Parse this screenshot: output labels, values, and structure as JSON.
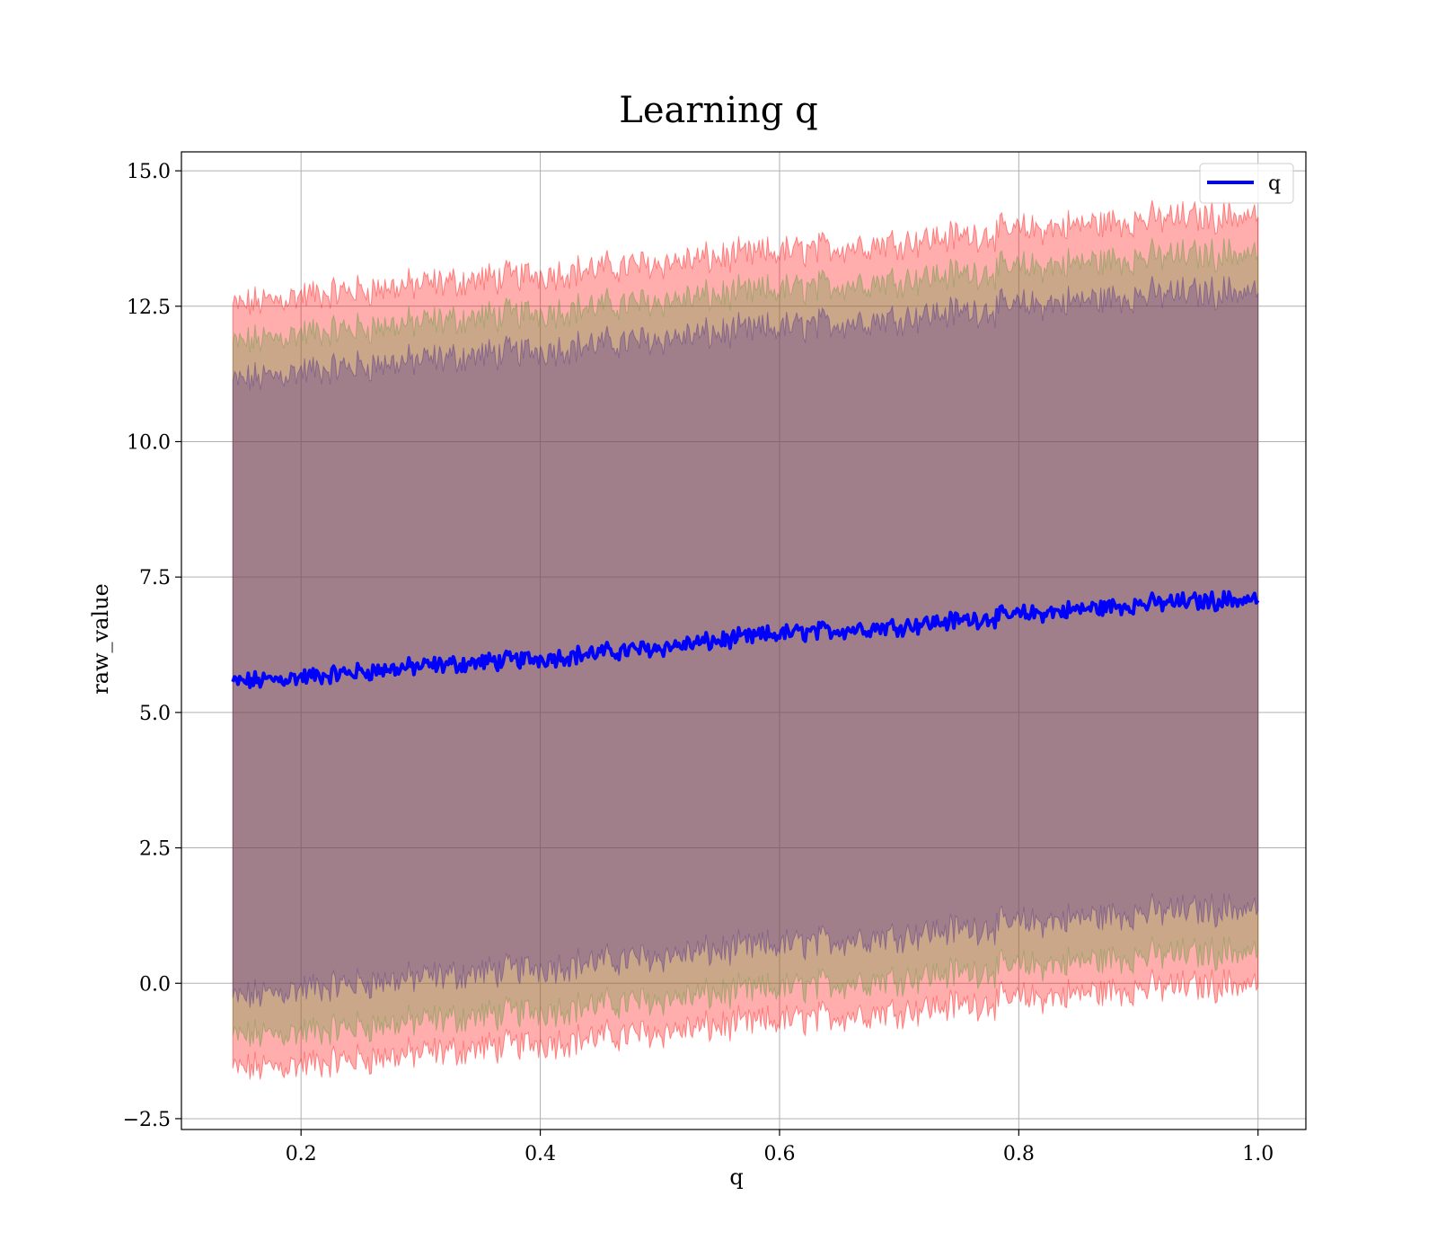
{
  "chart_data": {
    "type": "line",
    "title": "Learning q",
    "xlabel": "q",
    "ylabel": "raw_value",
    "xlim": [
      0.1,
      1.04
    ],
    "ylim": [
      -2.7,
      15.35
    ],
    "x_ticks": [
      "0.2",
      "0.4",
      "0.6",
      "0.8",
      "1.0"
    ],
    "y_ticks": [
      "−2.5",
      "0.0",
      "2.5",
      "5.0",
      "7.5",
      "10.0",
      "12.5",
      "15.0"
    ],
    "grid": true,
    "legend": {
      "position": "top-right",
      "entries": [
        "q"
      ]
    },
    "series": [
      {
        "name": "q",
        "kind": "line",
        "color": "#0000ff",
        "x": [
          0.143,
          0.2,
          0.3,
          0.4,
          0.5,
          0.6,
          0.7,
          0.8,
          0.9,
          1.0
        ],
        "y": [
          5.55,
          5.65,
          5.85,
          6.0,
          6.2,
          6.45,
          6.6,
          6.8,
          7.0,
          7.1
        ]
      }
    ],
    "bands": [
      {
        "color": "#ff0000",
        "x": [
          0.143,
          0.2,
          0.3,
          0.4,
          0.5,
          0.6,
          0.7,
          0.8,
          0.9,
          1.0
        ],
        "lower": [
          -1.6,
          -1.5,
          -1.3,
          -1.1,
          -0.9,
          -0.7,
          -0.5,
          -0.3,
          -0.1,
          0.0
        ],
        "upper": [
          12.5,
          12.7,
          12.9,
          13.1,
          13.3,
          13.5,
          13.7,
          13.9,
          14.1,
          14.2
        ]
      },
      {
        "color": "#5a9a3a",
        "x": [
          0.143,
          0.2,
          0.3,
          0.4,
          0.5,
          0.6,
          0.7,
          0.8,
          0.9,
          1.0
        ],
        "lower": [
          -1.0,
          -0.9,
          -0.7,
          -0.5,
          -0.3,
          -0.1,
          0.1,
          0.3,
          0.5,
          0.6
        ],
        "upper": [
          11.8,
          12.0,
          12.2,
          12.4,
          12.6,
          12.8,
          13.0,
          13.2,
          13.4,
          13.5
        ]
      },
      {
        "color": "#4b2d8f",
        "x": [
          0.143,
          0.2,
          0.3,
          0.4,
          0.5,
          0.6,
          0.7,
          0.8,
          0.9,
          1.0
        ],
        "lower": [
          -0.3,
          -0.1,
          0.1,
          0.3,
          0.5,
          0.7,
          0.9,
          1.1,
          1.3,
          1.4
        ],
        "upper": [
          11.1,
          11.3,
          11.5,
          11.7,
          11.9,
          12.1,
          12.3,
          12.5,
          12.7,
          12.8
        ]
      }
    ]
  }
}
